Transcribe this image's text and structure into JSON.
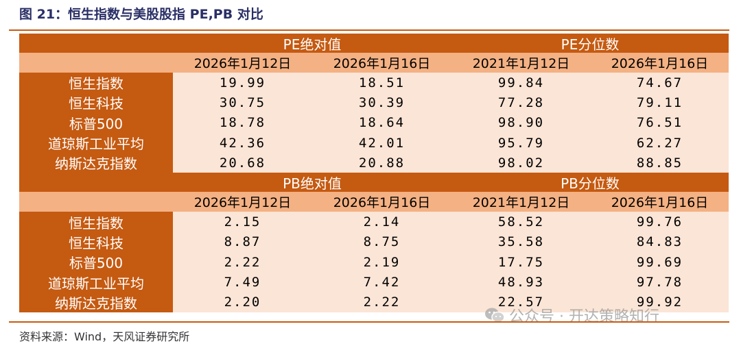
{
  "title": "图 21：恒生指数与美股股指 PE,PB 对比",
  "source": "资料来源：Wind，天风证券研究所",
  "watermark": "公众号 · 开达策略知行",
  "pe": {
    "group_abs": "PE绝对值",
    "group_pct": "PE分位数",
    "cols": [
      "2026年1月12日",
      "2026年1月16日",
      "2021年1月12日",
      "2026年1月16日"
    ],
    "rows": [
      {
        "name": "恒生指数",
        "v": [
          "19.99",
          "18.51",
          "99.84",
          "74.67"
        ]
      },
      {
        "name": "恒生科技",
        "v": [
          "30.75",
          "30.39",
          "77.28",
          "79.11"
        ]
      },
      {
        "name": "标普500",
        "v": [
          "18.78",
          "18.64",
          "98.90",
          "76.51"
        ]
      },
      {
        "name": "道琼斯工业平均",
        "v": [
          "42.36",
          "42.01",
          "95.79",
          "62.27"
        ]
      },
      {
        "name": "纳斯达克指数",
        "v": [
          "20.68",
          "20.88",
          "98.02",
          "88.85"
        ]
      }
    ]
  },
  "pb": {
    "group_abs": "PB绝对值",
    "group_pct": "PB分位数",
    "cols": [
      "2026年1月12日",
      "2026年1月16日",
      "2021年1月12日",
      "2026年1月16日"
    ],
    "rows": [
      {
        "name": "恒生指数",
        "v": [
          "2.15",
          "2.14",
          "58.52",
          "99.76"
        ]
      },
      {
        "name": "恒生科技",
        "v": [
          "8.87",
          "8.75",
          "35.58",
          "84.83"
        ]
      },
      {
        "name": "标普500",
        "v": [
          "2.22",
          "2.19",
          "17.75",
          "99.69"
        ]
      },
      {
        "name": "道琼斯工业平均",
        "v": [
          "7.49",
          "7.42",
          "48.93",
          "97.78"
        ]
      },
      {
        "name": "纳斯达克指数",
        "v": [
          "2.20",
          "2.22",
          "22.57",
          "99.92"
        ]
      }
    ]
  },
  "colors": {
    "header": "#c55a11",
    "subheader": "#f4b183",
    "cell": "#fbe5d6",
    "title": "#2a2f66"
  }
}
